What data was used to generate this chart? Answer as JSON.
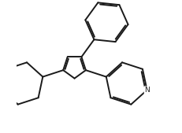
{
  "bg_color": "#ffffff",
  "line_color": "#1a1a1a",
  "line_width": 1.4,
  "fig_width": 2.31,
  "fig_height": 1.69,
  "dpi": 100,
  "xlim": [
    -3.5,
    5.5
  ],
  "ylim": [
    -4.0,
    4.0
  ]
}
